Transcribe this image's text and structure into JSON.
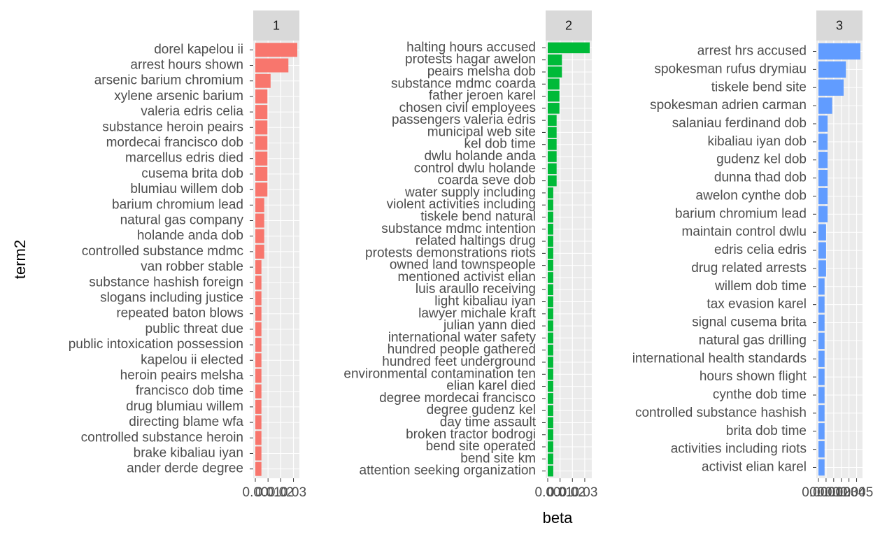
{
  "chart_data": [
    {
      "type": "bar",
      "orientation": "horizontal",
      "title": "1",
      "color": "#F8766D",
      "categories": [
        "dorel kapelou ii",
        "arrest hours shown",
        "arsenic barium chromium",
        "xylene arsenic barium",
        "valeria edris celia",
        "substance heroin peairs",
        "mordecai francisco dob",
        "marcellus edris died",
        "cusema brita dob",
        "blumiau willem dob",
        "barium chromium lead",
        "natural gas company",
        "holande anda dob",
        "controlled substance mdmc",
        "van robber stable",
        "substance hashish foreign",
        "slogans including justice",
        "repeated baton blows",
        "public threat due",
        "public intoxication possession",
        "kapelou ii elected",
        "heroin peairs melsha",
        "francisco dob time",
        "drug blumiau willem",
        "directing blame wfa",
        "controlled substance heroin",
        "brake kibaliau iyan",
        "ander derde degree"
      ],
      "values": [
        0.033,
        0.026,
        0.012,
        0.0095,
        0.0095,
        0.0095,
        0.0095,
        0.0095,
        0.0095,
        0.0095,
        0.007,
        0.007,
        0.007,
        0.007,
        0.0048,
        0.0048,
        0.0048,
        0.0048,
        0.0048,
        0.0048,
        0.0048,
        0.0048,
        0.0048,
        0.0048,
        0.0048,
        0.0048,
        0.0048,
        0.0048
      ],
      "xlim": [
        -0.00165,
        0.03465
      ],
      "xticks": [
        {
          "value": 0,
          "label": "0.00"
        },
        {
          "value": 0.01,
          "label": "0.01"
        },
        {
          "value": 0.02,
          "label": "0.02"
        },
        {
          "value": 0.03,
          "label": "0.03"
        }
      ]
    },
    {
      "type": "bar",
      "orientation": "horizontal",
      "title": "2",
      "color": "#00BA38",
      "categories": [
        "halting hours accused",
        "protests hagar awelon",
        "peairs melsha dob",
        "substance mdmc coarda",
        "father jeroen karel",
        "chosen civil employees",
        "passengers valeria edris",
        "municipal web site",
        "kel dob time",
        "dwlu holande anda",
        "control dwlu holande",
        "coarda seve dob",
        "water supply including",
        "violent activities including",
        "tiskele bend natural",
        "substance mdmc intention",
        "related haltings drug",
        "protests demonstrations riots",
        "owned land townspeople",
        "mentioned activist elian",
        "luis araullo receiving",
        "light kibaliau iyan",
        "lawyer michale kraft",
        "julian yann died",
        "international water safety",
        "hundred people gathered",
        "hundred feet underground",
        "environmental contamination ten",
        "elian karel died",
        "degree mordecai francisco",
        "degree gudenz kel",
        "day time assault",
        "broken tractor bodrogi",
        "bend site operated",
        "bend site km",
        "attention seeking organization"
      ],
      "values": [
        0.034,
        0.0115,
        0.0115,
        0.0095,
        0.0095,
        0.0095,
        0.0072,
        0.0072,
        0.0072,
        0.0072,
        0.0072,
        0.0072,
        0.0045,
        0.0045,
        0.0045,
        0.0045,
        0.0045,
        0.0045,
        0.0045,
        0.0045,
        0.0045,
        0.0045,
        0.0045,
        0.0045,
        0.0045,
        0.0045,
        0.0045,
        0.0045,
        0.0045,
        0.0045,
        0.0045,
        0.0045,
        0.0045,
        0.0045,
        0.0045,
        0.0045
      ],
      "xlim": [
        -0.0017,
        0.0357
      ],
      "xticks": [
        {
          "value": 0,
          "label": "0.00"
        },
        {
          "value": 0.01,
          "label": "0.01"
        },
        {
          "value": 0.02,
          "label": "0.02"
        },
        {
          "value": 0.03,
          "label": "0.03"
        }
      ]
    },
    {
      "type": "bar",
      "orientation": "horizontal",
      "title": "3",
      "color": "#619CFF",
      "categories": [
        "arrest hrs accused",
        "spokesman rufus drymiau",
        "tiskele bend site",
        "spokesman adrien carman",
        "salaniau ferdinand dob",
        "kibaliau iyan dob",
        "gudenz kel dob",
        "dunna thad dob",
        "awelon cynthe dob",
        "barium chromium lead",
        "maintain control dwlu",
        "edris celia edris",
        "drug related arrests",
        "willem dob time",
        "tax evasion karel",
        "signal cusema brita",
        "natural gas drilling",
        "international health standards",
        "hours shown flight",
        "cynthe dob time",
        "controlled substance hashish",
        "brita dob time",
        "activities including riots",
        "activist elian karel"
      ],
      "values": [
        0.0055,
        0.0036,
        0.0033,
        0.0018,
        0.0012,
        0.0012,
        0.0012,
        0.0012,
        0.0012,
        0.0012,
        0.001,
        0.001,
        0.001,
        0.0008,
        0.0008,
        0.0008,
        0.0008,
        0.0008,
        0.0008,
        0.0008,
        0.0008,
        0.0008,
        0.0008,
        0.0008
      ],
      "xlim": [
        -0.000275,
        0.005775
      ],
      "xticks": [
        {
          "value": 0,
          "label": "0.000"
        },
        {
          "value": 0.001,
          "label": "0.001"
        },
        {
          "value": 0.002,
          "label": "0.002"
        },
        {
          "value": 0.003,
          "label": "0.003"
        },
        {
          "value": 0.004,
          "label": "0.004"
        },
        {
          "value": 0.005,
          "label": "0.005"
        }
      ]
    }
  ],
  "x_label": "beta",
  "y_label": "term2"
}
